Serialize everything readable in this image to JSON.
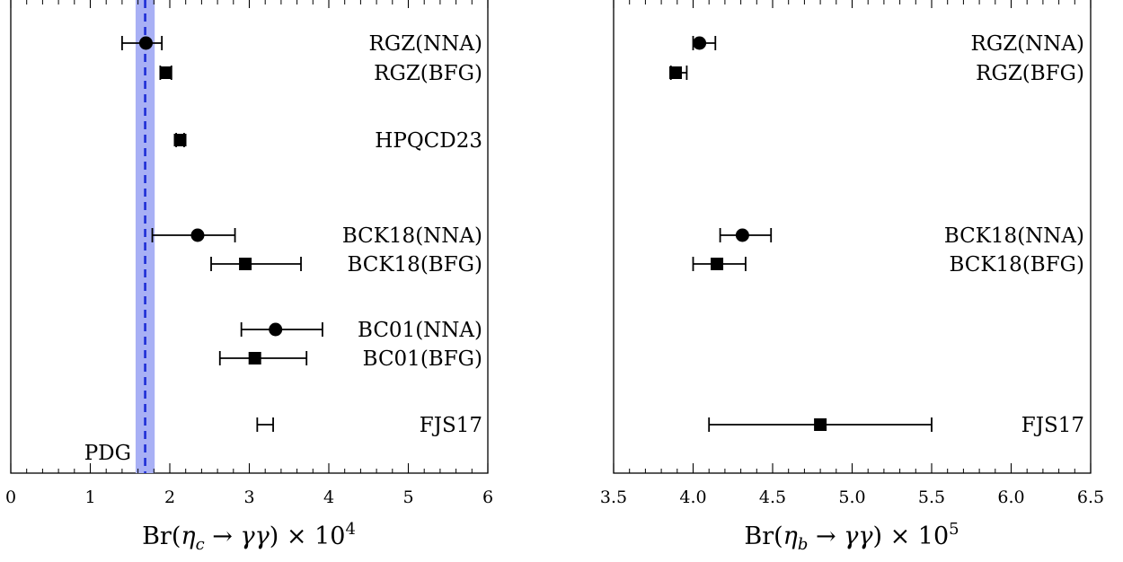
{
  "chart_data": [
    {
      "type": "scatter",
      "subtype": "forest-plot-with-horizontal-error-bars",
      "xlabel": "Br(η_c → γγ) × 10^4",
      "xlim": [
        0,
        6
      ],
      "x_ticks": [
        "0",
        "1",
        "2",
        "3",
        "4",
        "5",
        "6"
      ],
      "grid": false,
      "reference_band": {
        "label": "PDG",
        "value": 1.69,
        "low": 1.57,
        "high": 1.81,
        "color": "#a8b0f5",
        "line_color": "#1d2dd6"
      },
      "entries": [
        {
          "label": "RGZ(NNA)",
          "marker": "circle",
          "value": 1.7,
          "low": 1.4,
          "high": 1.9
        },
        {
          "label": "RGZ(BFG)",
          "marker": "square",
          "value": 1.95,
          "low": 1.88,
          "high": 2.02
        },
        {
          "label": "HPQCD23",
          "marker": "square",
          "value": 2.13,
          "low": 2.08,
          "high": 2.18
        },
        {
          "label": "BCK18(NNA)",
          "marker": "circle",
          "value": 2.35,
          "low": 1.78,
          "high": 2.82
        },
        {
          "label": "BCK18(BFG)",
          "marker": "square",
          "value": 2.95,
          "low": 2.52,
          "high": 3.65
        },
        {
          "label": "BC01(NNA)",
          "marker": "circle",
          "value": 3.33,
          "low": 2.9,
          "high": 3.92
        },
        {
          "label": "BC01(BFG)",
          "marker": "square",
          "value": 3.07,
          "low": 2.63,
          "high": 3.72
        },
        {
          "label": "FJS17",
          "marker": "none",
          "value": 3.2,
          "low": 3.1,
          "high": 3.3
        }
      ]
    },
    {
      "type": "scatter",
      "subtype": "forest-plot-with-horizontal-error-bars",
      "xlabel": "Br(η_b → γγ) × 10^5",
      "xlim": [
        3.5,
        6.5
      ],
      "x_ticks": [
        "3.5",
        "4.0",
        "4.5",
        "5.0",
        "5.5",
        "6.0",
        "6.5"
      ],
      "grid": false,
      "entries": [
        {
          "label": "RGZ(NNA)",
          "marker": "circle",
          "value": 4.04,
          "low": 4.0,
          "high": 4.14
        },
        {
          "label": "RGZ(BFG)",
          "marker": "square",
          "value": 3.89,
          "low": 3.86,
          "high": 3.96
        },
        {
          "label": "BCK18(NNA)",
          "marker": "circle",
          "value": 4.31,
          "low": 4.17,
          "high": 4.49
        },
        {
          "label": "BCK18(BFG)",
          "marker": "square",
          "value": 4.15,
          "low": 4.0,
          "high": 4.33
        },
        {
          "label": "FJS17",
          "marker": "square",
          "value": 4.8,
          "low": 4.1,
          "high": 5.5
        }
      ]
    }
  ]
}
